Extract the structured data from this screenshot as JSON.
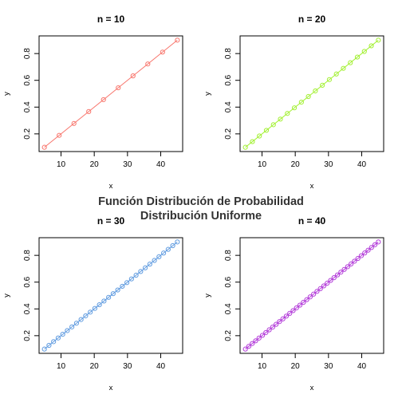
{
  "suptitle": {
    "line1": "Función Distribución de Probabilidad",
    "line2": "Distribución Uniforme"
  },
  "chart_data": [
    {
      "type": "line",
      "title": "n = 10",
      "xlabel": "x",
      "ylabel": "y",
      "color": "#F8766D",
      "n": 10,
      "x_range": [
        5,
        45
      ],
      "y_range": [
        0.1,
        0.9
      ],
      "xlim": [
        3.4,
        46.6
      ],
      "ylim": [
        0.068,
        0.932
      ],
      "xticks": [
        10,
        20,
        30,
        40
      ],
      "yticks": [
        0.2,
        0.4,
        0.6,
        0.8
      ],
      "xtick_labels": [
        "10",
        "20",
        "30",
        "40"
      ],
      "ytick_labels": [
        "0.2",
        "0.4",
        "0.6",
        "0.8"
      ]
    },
    {
      "type": "line",
      "title": "n = 20",
      "xlabel": "x",
      "ylabel": "y",
      "color": "#A3F033",
      "n": 20,
      "x_range": [
        5,
        45
      ],
      "y_range": [
        0.1,
        0.9
      ],
      "xlim": [
        3.4,
        46.6
      ],
      "ylim": [
        0.068,
        0.932
      ],
      "xticks": [
        10,
        20,
        30,
        40
      ],
      "yticks": [
        0.2,
        0.4,
        0.6,
        0.8
      ],
      "xtick_labels": [
        "10",
        "20",
        "30",
        "40"
      ],
      "ytick_labels": [
        "0.2",
        "0.4",
        "0.6",
        "0.8"
      ]
    },
    {
      "type": "line",
      "title": "n = 30",
      "xlabel": "x",
      "ylabel": "y",
      "color": "#619CE0",
      "n": 30,
      "x_range": [
        5,
        45
      ],
      "y_range": [
        0.1,
        0.9
      ],
      "xlim": [
        3.4,
        46.6
      ],
      "ylim": [
        0.068,
        0.932
      ],
      "xticks": [
        10,
        20,
        30,
        40
      ],
      "yticks": [
        0.2,
        0.4,
        0.6,
        0.8
      ],
      "xtick_labels": [
        "10",
        "20",
        "30",
        "40"
      ],
      "ytick_labels": [
        "0.2",
        "0.4",
        "0.6",
        "0.8"
      ]
    },
    {
      "type": "line",
      "title": "n = 40",
      "xlabel": "x",
      "ylabel": "y",
      "color": "#B33DD9",
      "n": 40,
      "x_range": [
        5,
        45
      ],
      "y_range": [
        0.1,
        0.9
      ],
      "xlim": [
        3.4,
        46.6
      ],
      "ylim": [
        0.068,
        0.932
      ],
      "xticks": [
        10,
        20,
        30,
        40
      ],
      "yticks": [
        0.2,
        0.4,
        0.6,
        0.8
      ],
      "xtick_labels": [
        "10",
        "20",
        "30",
        "40"
      ],
      "ytick_labels": [
        "0.2",
        "0.4",
        "0.6",
        "0.8"
      ]
    }
  ]
}
